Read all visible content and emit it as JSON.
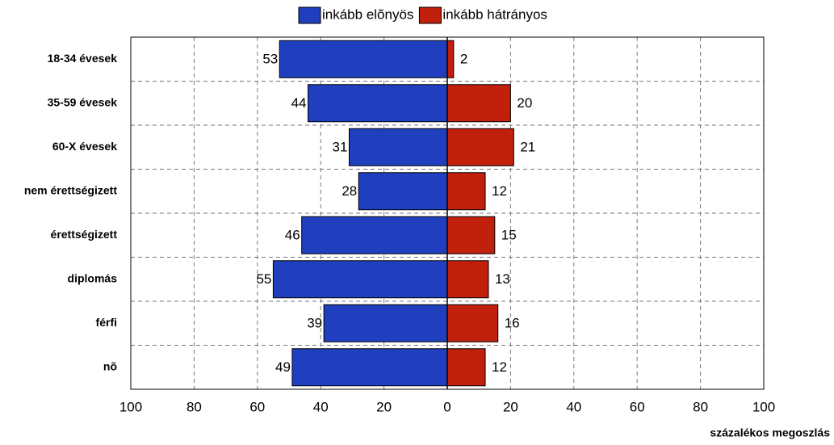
{
  "chart_data": {
    "type": "diverging_bar",
    "x_axis_label": "százalékos megoszlás",
    "categories": [
      "18-34 évesek",
      "35-59 évesek",
      "60-X évesek",
      "nem érettségizett",
      "érettségizett",
      "diplomás",
      "férfi",
      "nõ"
    ],
    "series": [
      {
        "name": "inkább elõnyös",
        "color": "#1f3fbf",
        "values": [
          -53,
          -44,
          -31,
          -28,
          -46,
          -55,
          -39,
          -49
        ],
        "value_labels": [
          "53",
          "44",
          "31",
          "28",
          "46",
          "55",
          "39",
          "49"
        ]
      },
      {
        "name": "inkább hátrányos",
        "color": "#c0200c",
        "values": [
          2,
          20,
          21,
          12,
          15,
          13,
          16,
          12
        ]
      }
    ],
    "xlim": [
      -100,
      100
    ],
    "xticks": [
      {
        "value": -100,
        "label": "100"
      },
      {
        "value": -80,
        "label": "80"
      },
      {
        "value": -60,
        "label": "60"
      },
      {
        "value": -40,
        "label": "40"
      },
      {
        "value": -20,
        "label": "20"
      },
      0,
      20,
      40,
      60,
      80,
      100
    ],
    "grid": true,
    "legend": "top"
  }
}
